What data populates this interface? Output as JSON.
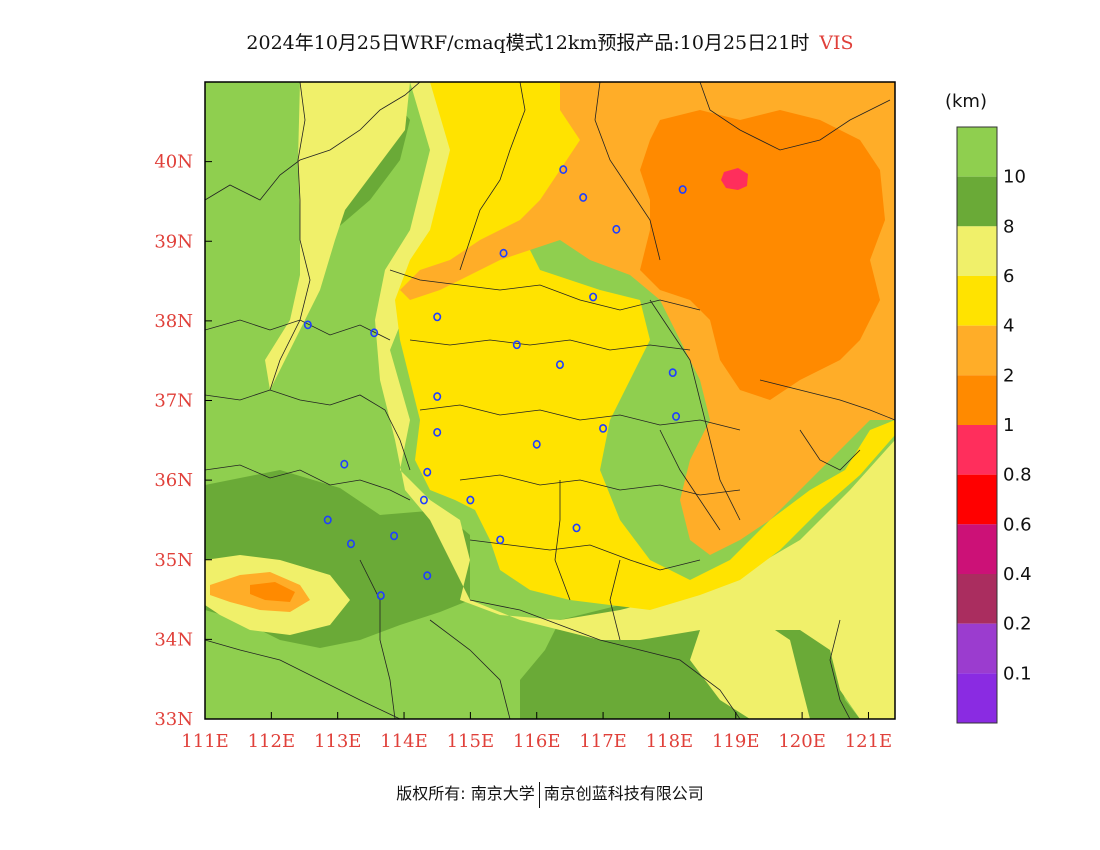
{
  "title": {
    "main": "2024年10月25日WRF/cmaq模式12km预报产品:10月25日21时",
    "variable": "VIS"
  },
  "colors": {
    "band_10plus": "#8fcf4f",
    "band_8_10": "#6aaa37",
    "band_6_8": "#f0f06a",
    "band_4_6": "#ffe300",
    "band_2_4": "#ffad28",
    "band_1_2": "#ff8a00",
    "band_0_8_1": "#ff2e5c",
    "band_0_6_0_8": "#ff0000",
    "band_0_4_0_6": "#cc1177",
    "band_0_2_0_4": "#aa2d5f",
    "band_0_1_0_2": "#9b3ccf",
    "band_0_0_1": "#8a2be2",
    "axis_label": "#e0403a",
    "station": "#1f3fff"
  },
  "chart_data": {
    "type": "heatmap",
    "title": "2024年10月25日WRF/cmaq模式12km预报产品:10月25日21时 VIS",
    "x_axis": {
      "range": [
        111,
        121.4
      ],
      "ticks": [
        111,
        112,
        113,
        114,
        115,
        116,
        117,
        118,
        119,
        120,
        121
      ],
      "tick_labels": [
        "111E",
        "112E",
        "113E",
        "114E",
        "115E",
        "116E",
        "117E",
        "118E",
        "119E",
        "120E",
        "121E"
      ]
    },
    "y_axis": {
      "range": [
        33,
        41
      ],
      "ticks": [
        33,
        34,
        35,
        36,
        37,
        38,
        39,
        40
      ],
      "tick_labels": [
        "33N",
        "34N",
        "35N",
        "36N",
        "37N",
        "38N",
        "39N",
        "40N"
      ]
    },
    "colorbar": {
      "unit": "(km)",
      "levels": [
        "10",
        "8",
        "6",
        "4",
        "2",
        "1",
        "0.8",
        "0.6",
        "0.4",
        "0.2",
        "0.1"
      ],
      "bands_top_to_bottom": [
        "band_10plus",
        "band_8_10",
        "band_6_8",
        "band_4_6",
        "band_2_4",
        "band_1_2",
        "band_0_8_1",
        "band_0_6_0_8",
        "band_0_4_0_6",
        "band_0_2_0_4",
        "band_0_1_0_2",
        "band_0_0_1"
      ]
    },
    "stations": [
      {
        "lon": 116.4,
        "lat": 39.9
      },
      {
        "lon": 116.7,
        "lat": 39.55
      },
      {
        "lon": 117.2,
        "lat": 39.15
      },
      {
        "lon": 118.2,
        "lat": 39.65
      },
      {
        "lon": 115.5,
        "lat": 38.85
      },
      {
        "lon": 116.85,
        "lat": 38.3
      },
      {
        "lon": 114.5,
        "lat": 38.05
      },
      {
        "lon": 113.55,
        "lat": 37.85
      },
      {
        "lon": 112.55,
        "lat": 37.95
      },
      {
        "lon": 115.7,
        "lat": 37.7
      },
      {
        "lon": 116.35,
        "lat": 37.45
      },
      {
        "lon": 114.5,
        "lat": 37.05
      },
      {
        "lon": 118.05,
        "lat": 37.35
      },
      {
        "lon": 117.0,
        "lat": 36.65
      },
      {
        "lon": 118.1,
        "lat": 36.8
      },
      {
        "lon": 114.5,
        "lat": 36.6
      },
      {
        "lon": 116.0,
        "lat": 36.45
      },
      {
        "lon": 113.1,
        "lat": 36.2
      },
      {
        "lon": 114.35,
        "lat": 36.1
      },
      {
        "lon": 114.3,
        "lat": 35.75
      },
      {
        "lon": 115.0,
        "lat": 35.75
      },
      {
        "lon": 112.85,
        "lat": 35.5
      },
      {
        "lon": 116.6,
        "lat": 35.4
      },
      {
        "lon": 113.2,
        "lat": 35.2
      },
      {
        "lon": 113.85,
        "lat": 35.3
      },
      {
        "lon": 115.45,
        "lat": 35.25
      },
      {
        "lon": 114.35,
        "lat": 34.8
      },
      {
        "lon": 113.65,
        "lat": 34.55
      }
    ]
  },
  "footer": {
    "copyright_prefix": "版权所有: 南京大学",
    "company": "南京创蓝科技有限公司"
  }
}
